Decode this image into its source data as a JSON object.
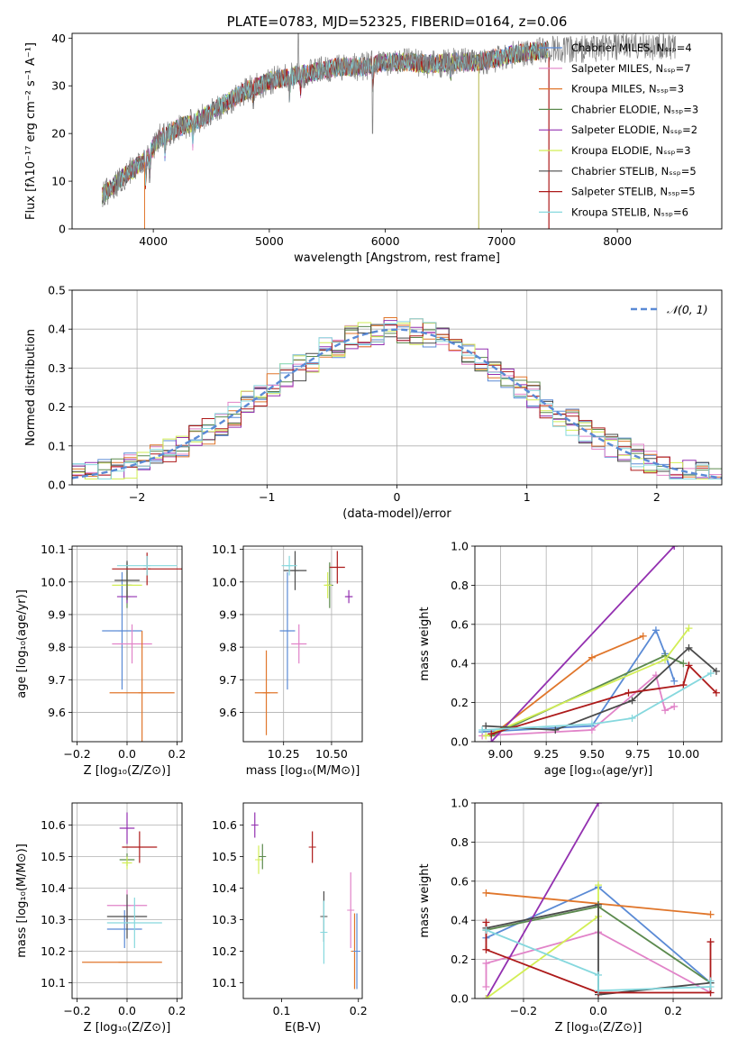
{
  "colors": {
    "Chabrier MILES": "#5a8ad5",
    "Salpeter MILES": "#e183c8",
    "Kroupa MILES": "#e0762b",
    "Chabrier ELODIE": "#5c8a4e",
    "Salpeter ELODIE": "#9330b0",
    "Kroupa ELODIE": "#d2ee55",
    "Chabrier STELIB": "#4a4a4a",
    "Salpeter STELIB": "#ad1a1a",
    "Kroupa STELIB": "#86d8de"
  },
  "chart_data": [
    {
      "id": "spectrum",
      "type": "line",
      "title": "PLATE=0783, MJD=52325, FIBERID=0164, z=0.06",
      "xlabel": "wavelength [Angstrom, rest frame]",
      "ylabel": "Flux [fλ10⁻¹⁷ erg cm⁻² s⁻¹ A⁻¹]",
      "xlim": [
        3300,
        8900
      ],
      "ylim": [
        0,
        41
      ],
      "xticks": [
        "4000",
        "5000",
        "6000",
        "7000",
        "8000"
      ],
      "yticks": [
        "0",
        "10",
        "20",
        "30",
        "40"
      ],
      "grid": false,
      "legend_position": "right",
      "data_line_color": "#808080",
      "legend": [
        {
          "name": "Chabrier MILES",
          "nssp": "Nₛₛₚ=4"
        },
        {
          "name": "Salpeter MILES",
          "nssp": "Nₛₛₚ=7"
        },
        {
          "name": "Kroupa MILES",
          "nssp": "Nₛₛₚ=3"
        },
        {
          "name": "Chabrier ELODIE",
          "nssp": "Nₛₛₚ=3"
        },
        {
          "name": "Salpeter ELODIE",
          "nssp": "Nₛₛₚ=2"
        },
        {
          "name": "Kroupa ELODIE",
          "nssp": "Nₛₛₚ=3"
        },
        {
          "name": "Chabrier STELIB",
          "nssp": "Nₛₛₚ=5"
        },
        {
          "name": "Salpeter STELIB",
          "nssp": "Nₛₛₚ=5"
        },
        {
          "name": "Kroupa STELIB",
          "nssp": "Nₛₛₚ=6"
        }
      ],
      "continuum": [
        [
          3560,
          7
        ],
        [
          3650,
          9
        ],
        [
          3750,
          11
        ],
        [
          3850,
          13
        ],
        [
          3950,
          15
        ],
        [
          4050,
          19
        ],
        [
          4200,
          21
        ],
        [
          4400,
          23
        ],
        [
          4600,
          26
        ],
        [
          4800,
          29
        ],
        [
          5000,
          31
        ],
        [
          5200,
          32
        ],
        [
          5400,
          33
        ],
        [
          5600,
          34
        ],
        [
          5800,
          34
        ],
        [
          6000,
          35
        ],
        [
          6200,
          35
        ],
        [
          6400,
          34.5
        ],
        [
          6600,
          35
        ],
        [
          6800,
          35
        ],
        [
          7000,
          36
        ],
        [
          7200,
          37
        ],
        [
          7400,
          37.5
        ],
        [
          7600,
          37.5
        ],
        [
          7800,
          38
        ],
        [
          8000,
          38
        ],
        [
          8200,
          38.5
        ],
        [
          8400,
          38
        ],
        [
          8500,
          38
        ]
      ],
      "model_range": [
        3560,
        7400
      ],
      "data_range": [
        3560,
        8500
      ]
    },
    {
      "id": "residuals",
      "type": "histogram",
      "xlabel": "(data-model)/error",
      "ylabel": "Normed distribution",
      "xlim": [
        -2.5,
        2.5
      ],
      "ylim": [
        0,
        0.5
      ],
      "xticks": [
        "−2",
        "−1",
        "0",
        "1",
        "2"
      ],
      "yticks": [
        "0.0",
        "0.1",
        "0.2",
        "0.3",
        "0.4",
        "0.5"
      ],
      "grid": true,
      "legend_position": "top-right",
      "reference_curve": {
        "label": "𝒩(0, 1)",
        "color": "#5a8ad5"
      },
      "bin_width": 0.1
    },
    {
      "id": "age-vs-Z",
      "type": "errorbar",
      "xlabel": "Z [log₁₀(Z/Z⊙)]",
      "ylabel": "age  [log₁₀(age/yr)]",
      "xlim": [
        -0.22,
        0.22
      ],
      "ylim": [
        9.51,
        10.11
      ],
      "xticks": [
        "−0.2",
        "0.0",
        "0.2"
      ],
      "yticks": [
        "9.6",
        "9.7",
        "9.8",
        "9.9",
        "10.0",
        "10.1"
      ],
      "grid": true,
      "points": [
        {
          "model": "Chabrier MILES",
          "x": -0.02,
          "y": 9.85,
          "xerr": 0.08,
          "yerr": 0.18
        },
        {
          "model": "Salpeter MILES",
          "x": 0.02,
          "y": 9.81,
          "xerr": 0.08,
          "yerr": 0.06
        },
        {
          "model": "Kroupa MILES",
          "x": 0.06,
          "y": 9.66,
          "xerr": 0.13,
          "yerr": 0.19
        },
        {
          "model": "Chabrier ELODIE",
          "x": 0.0,
          "y": 9.99,
          "xerr": 0.02,
          "yerr": 0.07
        },
        {
          "model": "Salpeter ELODIE",
          "x": 0.0,
          "y": 9.955,
          "xerr": 0.04,
          "yerr": 0.02
        },
        {
          "model": "Kroupa ELODIE",
          "x": 0.0,
          "y": 9.99,
          "xerr": 0.06,
          "yerr": 0.04
        },
        {
          "model": "Chabrier STELIB",
          "x": 0.0,
          "y": 10.005,
          "xerr": 0.05,
          "yerr": 0.06
        },
        {
          "model": "Salpeter STELIB",
          "x": 0.08,
          "y": 10.04,
          "xerr": 0.14,
          "yerr": 0.05
        },
        {
          "model": "Kroupa STELIB",
          "x": 0.08,
          "y": 10.05,
          "xerr": 0.12,
          "yerr": 0.03
        }
      ]
    },
    {
      "id": "age-vs-mass",
      "type": "errorbar",
      "xlabel": "mass [log₁₀(M/M⊙)]",
      "ylabel": "",
      "xlim": [
        10.04,
        10.66
      ],
      "ylim": [
        9.51,
        10.11
      ],
      "xticks": [
        "10.25",
        "10.50"
      ],
      "yticks": [
        "9.6",
        "9.7",
        "9.8",
        "9.9",
        "10.0",
        "10.1"
      ],
      "grid": true,
      "points": [
        {
          "model": "Chabrier MILES",
          "x": 10.27,
          "y": 9.85,
          "xerr": 0.04,
          "yerr": 0.18
        },
        {
          "model": "Salpeter MILES",
          "x": 10.33,
          "y": 9.81,
          "xerr": 0.04,
          "yerr": 0.06
        },
        {
          "model": "Kroupa MILES",
          "x": 10.16,
          "y": 9.66,
          "xerr": 0.06,
          "yerr": 0.13
        },
        {
          "model": "Chabrier ELODIE",
          "x": 10.49,
          "y": 9.99,
          "xerr": 0.01,
          "yerr": 0.07
        },
        {
          "model": "Salpeter ELODIE",
          "x": 10.59,
          "y": 9.955,
          "xerr": 0.02,
          "yerr": 0.02
        },
        {
          "model": "Kroupa ELODIE",
          "x": 10.48,
          "y": 9.99,
          "xerr": 0.02,
          "yerr": 0.04
        },
        {
          "model": "Chabrier STELIB",
          "x": 10.31,
          "y": 10.035,
          "xerr": 0.06,
          "yerr": 0.06
        },
        {
          "model": "Salpeter STELIB",
          "x": 10.53,
          "y": 10.045,
          "xerr": 0.04,
          "yerr": 0.05
        },
        {
          "model": "Kroupa STELIB",
          "x": 10.28,
          "y": 10.05,
          "xerr": 0.04,
          "yerr": 0.03
        }
      ]
    },
    {
      "id": "weight-vs-age",
      "type": "line",
      "xlabel": "age  [log₁₀(age/yr)]",
      "ylabel": "mass weight",
      "xlim": [
        8.86,
        10.21
      ],
      "ylim": [
        0,
        1
      ],
      "xticks": [
        "9.00",
        "9.25",
        "9.50",
        "9.75",
        "10.00"
      ],
      "yticks": [
        "0.0",
        "0.2",
        "0.4",
        "0.6",
        "0.8",
        "1.0"
      ],
      "grid": true,
      "series": [
        {
          "model": "Chabrier MILES",
          "points": [
            [
              8.9,
              0.05
            ],
            [
              9.5,
              0.08
            ],
            [
              9.85,
              0.57
            ],
            [
              9.9,
              0.45
            ],
            [
              9.95,
              0.31
            ]
          ]
        },
        {
          "model": "Salpeter MILES",
          "points": [
            [
              8.9,
              0.03
            ],
            [
              9.5,
              0.06
            ],
            [
              9.85,
              0.34
            ],
            [
              9.9,
              0.16
            ],
            [
              9.95,
              0.18
            ]
          ]
        },
        {
          "model": "Kroupa MILES",
          "points": [
            [
              8.95,
              0.03
            ],
            [
              9.5,
              0.43
            ],
            [
              9.78,
              0.54
            ]
          ]
        },
        {
          "model": "Chabrier ELODIE",
          "points": [
            [
              8.95,
              0.03
            ],
            [
              9.9,
              0.44
            ],
            [
              10.0,
              0.4
            ]
          ]
        },
        {
          "model": "Salpeter ELODIE",
          "points": [
            [
              8.95,
              0.0
            ],
            [
              9.95,
              1.0
            ]
          ]
        },
        {
          "model": "Kroupa ELODIE",
          "points": [
            [
              8.92,
              0.03
            ],
            [
              9.9,
              0.42
            ],
            [
              10.03,
              0.58
            ]
          ]
        },
        {
          "model": "Chabrier STELIB",
          "points": [
            [
              8.92,
              0.08
            ],
            [
              9.3,
              0.06
            ],
            [
              9.72,
              0.21
            ],
            [
              10.03,
              0.48
            ],
            [
              10.18,
              0.36
            ]
          ]
        },
        {
          "model": "Salpeter STELIB",
          "points": [
            [
              8.95,
              0.04
            ],
            [
              9.7,
              0.25
            ],
            [
              10.0,
              0.29
            ],
            [
              10.03,
              0.39
            ],
            [
              10.18,
              0.25
            ]
          ]
        },
        {
          "model": "Kroupa STELIB",
          "points": [
            [
              8.9,
              0.06
            ],
            [
              9.5,
              0.09
            ],
            [
              9.72,
              0.12
            ],
            [
              10.15,
              0.35
            ]
          ]
        }
      ]
    },
    {
      "id": "mass-vs-Z",
      "type": "errorbar",
      "xlabel": "Z [log₁₀(Z/Z⊙)]",
      "ylabel": "mass [log₁₀(M/M⊙)]",
      "xlim": [
        -0.22,
        0.22
      ],
      "ylim": [
        10.05,
        10.67
      ],
      "xticks": [
        "−0.2",
        "0.0",
        "0.2"
      ],
      "yticks": [
        "10.1",
        "10.2",
        "10.3",
        "10.4",
        "10.5",
        "10.6"
      ],
      "grid": true,
      "points": [
        {
          "model": "Chabrier MILES",
          "x": -0.01,
          "y": 10.27,
          "xerr": 0.07,
          "yerr": 0.06
        },
        {
          "model": "Salpeter MILES",
          "x": 0.0,
          "y": 10.345,
          "xerr": 0.08,
          "yerr": 0.05
        },
        {
          "model": "Kroupa MILES",
          "x": -0.02,
          "y": 10.165,
          "xerr": 0.16,
          "yerr": 0.0
        },
        {
          "model": "Chabrier ELODIE",
          "x": 0.0,
          "y": 10.49,
          "xerr": 0.03,
          "yerr": 0.02
        },
        {
          "model": "Salpeter ELODIE",
          "x": 0.0,
          "y": 10.59,
          "xerr": 0.03,
          "yerr": 0.05
        },
        {
          "model": "Kroupa ELODIE",
          "x": 0.0,
          "y": 10.48,
          "xerr": 0.02,
          "yerr": 0.02
        },
        {
          "model": "Chabrier STELIB",
          "x": 0.0,
          "y": 10.31,
          "xerr": 0.08,
          "yerr": 0.07
        },
        {
          "model": "Salpeter STELIB",
          "x": 0.05,
          "y": 10.53,
          "xerr": 0.07,
          "yerr": 0.05
        },
        {
          "model": "Kroupa STELIB",
          "x": 0.03,
          "y": 10.29,
          "xerr": 0.11,
          "yerr": 0.08
        }
      ]
    },
    {
      "id": "mass-vs-EBV",
      "type": "errorbar",
      "xlabel": "E(B-V)",
      "ylabel": "",
      "xlim": [
        0.05,
        0.205
      ],
      "ylim": [
        10.05,
        10.67
      ],
      "xticks": [
        "0.1",
        "0.2"
      ],
      "yticks": [
        "10.1",
        "10.2",
        "10.3",
        "10.4",
        "10.5",
        "10.6"
      ],
      "grid": false,
      "points": [
        {
          "model": "Salpeter ELODIE",
          "x": 0.065,
          "y": 10.6,
          "yerr": 0.04
        },
        {
          "model": "Kroupa ELODIE",
          "x": 0.07,
          "y": 10.49,
          "yerr": 0.045
        },
        {
          "model": "Chabrier ELODIE",
          "x": 0.075,
          "y": 10.5,
          "yerr": 0.04
        },
        {
          "model": "Salpeter STELIB",
          "x": 0.14,
          "y": 10.53,
          "yerr": 0.05
        },
        {
          "model": "Chabrier STELIB",
          "x": 0.155,
          "y": 10.31,
          "yerr": 0.08
        },
        {
          "model": "Kroupa STELIB",
          "x": 0.155,
          "y": 10.26,
          "yerr": 0.1
        },
        {
          "model": "Salpeter MILES",
          "x": 0.19,
          "y": 10.33,
          "yerr": 0.12
        },
        {
          "model": "Kroupa MILES",
          "x": 0.195,
          "y": 10.2,
          "yerr": 0.12
        },
        {
          "model": "Chabrier MILES",
          "x": 0.198,
          "y": 10.2,
          "yerr": 0.12
        }
      ]
    },
    {
      "id": "weight-vs-Z",
      "type": "line",
      "xlabel": "Z [log₁₀(Z/Z⊙)]",
      "ylabel": "mass weight",
      "xlim": [
        -0.33,
        0.33
      ],
      "ylim": [
        0,
        1
      ],
      "xticks": [
        "−0.2",
        "0.0",
        "0.2"
      ],
      "yticks": [
        "0.0",
        "0.2",
        "0.4",
        "0.6",
        "0.8",
        "1.0"
      ],
      "grid": true,
      "series": [
        {
          "model": "Chabrier MILES",
          "points": [
            [
              -0.3,
              0.31
            ],
            [
              0.0,
              0.57
            ],
            [
              0.3,
              0.08
            ]
          ]
        },
        {
          "model": "Salpeter MILES",
          "points": [
            [
              -0.3,
              0.06
            ],
            [
              -0.3,
              0.18
            ],
            [
              0.0,
              0.34
            ],
            [
              0.3,
              0.03
            ]
          ]
        },
        {
          "model": "Kroupa MILES",
          "points": [
            [
              -0.3,
              0.54
            ],
            [
              0.3,
              0.43
            ]
          ]
        },
        {
          "model": "Chabrier ELODIE",
          "points": [
            [
              -0.3,
              0.35
            ],
            [
              0.0,
              0.47
            ],
            [
              0.3,
              0.08
            ]
          ]
        },
        {
          "model": "Salpeter ELODIE",
          "points": [
            [
              -0.3,
              0.0
            ],
            [
              0.0,
              1.0
            ]
          ]
        },
        {
          "model": "Kroupa ELODIE",
          "points": [
            [
              -0.3,
              0.0
            ],
            [
              0.0,
              0.42
            ],
            [
              0.0,
              0.58
            ]
          ]
        },
        {
          "model": "Chabrier STELIB",
          "points": [
            [
              -0.3,
              0.36
            ],
            [
              0.0,
              0.48
            ],
            [
              0.0,
              0.02
            ],
            [
              0.3,
              0.08
            ]
          ]
        },
        {
          "model": "Salpeter STELIB",
          "points": [
            [
              -0.3,
              0.39
            ],
            [
              -0.3,
              0.25
            ],
            [
              0.0,
              0.03
            ],
            [
              0.3,
              0.03
            ],
            [
              0.3,
              0.29
            ]
          ]
        },
        {
          "model": "Kroupa STELIB",
          "points": [
            [
              -0.3,
              0.35
            ],
            [
              0.0,
              0.12
            ],
            [
              0.0,
              0.04
            ],
            [
              0.3,
              0.06
            ],
            [
              0.3,
              0.09
            ]
          ]
        }
      ]
    }
  ]
}
